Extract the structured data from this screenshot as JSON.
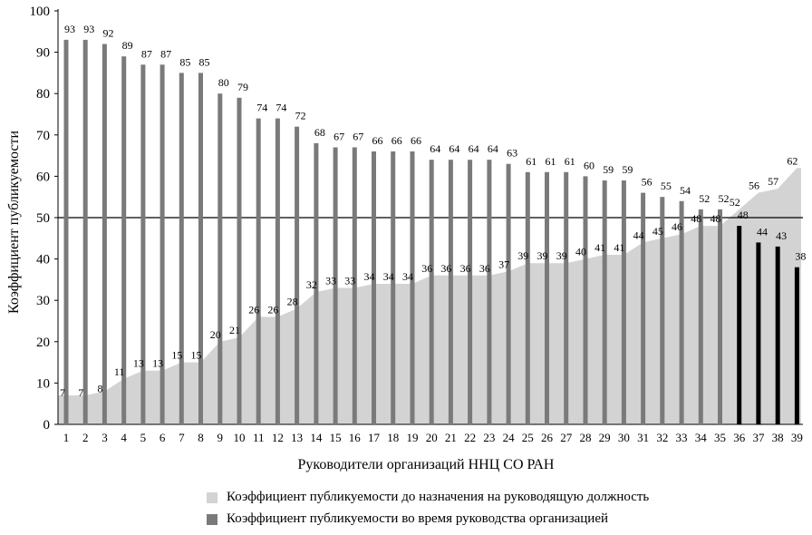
{
  "chart_data": {
    "type": "bar",
    "ylabel": "Коэффициент публикуемости",
    "xlabel": "Руководители организаций ННЦ СО РАН",
    "ylim": [
      0,
      100
    ],
    "yticks": [
      0,
      10,
      20,
      30,
      40,
      50,
      60,
      70,
      80,
      90,
      100
    ],
    "reference_line": 50,
    "categories": [
      "1",
      "2",
      "3",
      "4",
      "5",
      "6",
      "7",
      "8",
      "9",
      "10",
      "11",
      "12",
      "13",
      "14",
      "15",
      "16",
      "17",
      "18",
      "19",
      "20",
      "21",
      "22",
      "23",
      "24",
      "25",
      "26",
      "27",
      "28",
      "29",
      "30",
      "31",
      "32",
      "33",
      "34",
      "35",
      "36",
      "37",
      "38",
      "39"
    ],
    "series": [
      {
        "name": "Коэффициент публикуемости до назначения на  руководящую должность",
        "type": "area",
        "color": "#d3d3d3",
        "values": [
          7,
          7,
          8,
          11,
          13,
          13,
          15,
          15,
          20,
          21,
          26,
          26,
          28,
          32,
          33,
          33,
          34,
          34,
          34,
          36,
          36,
          36,
          36,
          37,
          39,
          39,
          39,
          40,
          41,
          41,
          44,
          45,
          46,
          48,
          48,
          52,
          56,
          57,
          62
        ]
      },
      {
        "name": "Коэффициент публикуемости во время руководства организацией",
        "type": "bar",
        "color": "#7a7a7a",
        "highlight_color": "#000000",
        "highlight_from_index": 35,
        "values": [
          93,
          93,
          92,
          89,
          87,
          87,
          85,
          85,
          80,
          79,
          74,
          74,
          72,
          68,
          67,
          67,
          66,
          66,
          66,
          64,
          64,
          64,
          64,
          63,
          61,
          61,
          61,
          60,
          59,
          59,
          56,
          55,
          54,
          52,
          52,
          48,
          44,
          43,
          38
        ]
      }
    ]
  }
}
